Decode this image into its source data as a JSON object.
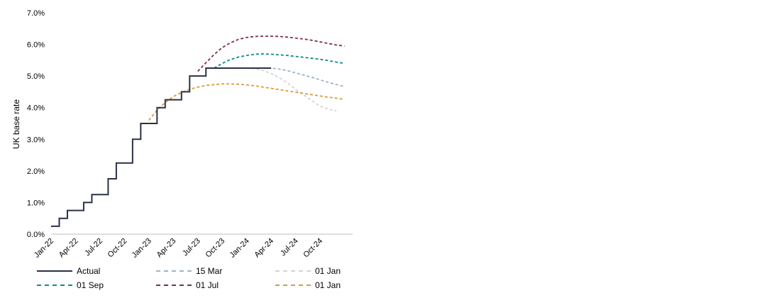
{
  "chart_data": {
    "type": "line",
    "title": "",
    "xlabel": "",
    "ylabel": "UK base rate",
    "ylim": [
      0,
      7
    ],
    "yticks": [
      "0.0%",
      "1.0%",
      "2.0%",
      "3.0%",
      "4.0%",
      "5.0%",
      "6.0%",
      "7.0%"
    ],
    "xlim": [
      "2022-01",
      "2025-02"
    ],
    "xticks": [
      "Jan-22",
      "Apr-22",
      "Jul-22",
      "Oct-22",
      "Jan-23",
      "Apr-23",
      "Jul-23",
      "Oct-23",
      "Jan-24",
      "Apr-24",
      "Jul-24",
      "Oct-24"
    ],
    "grid": false,
    "legend_position": "bottom",
    "series": [
      {
        "name": "Actual",
        "style": "solid",
        "color": "#2b3245",
        "step": true,
        "points": [
          [
            "2022-01",
            0.25
          ],
          [
            "2022-02",
            0.5
          ],
          [
            "2022-03",
            0.75
          ],
          [
            "2022-05",
            1.0
          ],
          [
            "2022-06",
            1.25
          ],
          [
            "2022-08",
            1.75
          ],
          [
            "2022-09",
            2.25
          ],
          [
            "2022-11",
            3.0
          ],
          [
            "2022-12",
            3.5
          ],
          [
            "2023-02",
            4.0
          ],
          [
            "2023-03",
            4.25
          ],
          [
            "2023-05",
            4.5
          ],
          [
            "2023-06",
            5.0
          ],
          [
            "2023-08",
            5.25
          ],
          [
            "2024-04",
            5.25
          ]
        ]
      },
      {
        "name": "15 Mar",
        "style": "dashed",
        "color": "#9fb3c2",
        "points": [
          [
            "2024-03",
            5.25
          ],
          [
            "2024-04",
            5.25
          ],
          [
            "2024-05",
            5.22
          ],
          [
            "2024-06",
            5.17
          ],
          [
            "2024-07",
            5.1
          ],
          [
            "2024-08",
            5.03
          ],
          [
            "2024-09",
            4.96
          ],
          [
            "2024-10",
            4.88
          ],
          [
            "2024-11",
            4.8
          ],
          [
            "2024-12",
            4.73
          ],
          [
            "2025-01",
            4.67
          ]
        ]
      },
      {
        "name": "01 Jan",
        "style": "dashed",
        "color": "#d4d4d4",
        "points": [
          [
            "2024-01",
            5.25
          ],
          [
            "2024-02",
            5.23
          ],
          [
            "2024-03",
            5.18
          ],
          [
            "2024-04",
            5.08
          ],
          [
            "2024-05",
            4.95
          ],
          [
            "2024-06",
            4.78
          ],
          [
            "2024-07",
            4.58
          ],
          [
            "2024-08",
            4.4
          ],
          [
            "2024-09",
            4.22
          ],
          [
            "2024-10",
            4.05
          ],
          [
            "2024-11",
            3.95
          ],
          [
            "2024-12",
            3.9
          ]
        ]
      },
      {
        "name": "01 Sep",
        "style": "dashed",
        "color": "#0e8b88",
        "points": [
          [
            "2023-09",
            5.25
          ],
          [
            "2023-10",
            5.4
          ],
          [
            "2023-11",
            5.52
          ],
          [
            "2023-12",
            5.6
          ],
          [
            "2024-01",
            5.65
          ],
          [
            "2024-02",
            5.69
          ],
          [
            "2024-03",
            5.7
          ],
          [
            "2024-04",
            5.69
          ],
          [
            "2024-05",
            5.67
          ],
          [
            "2024-06",
            5.65
          ],
          [
            "2024-07",
            5.62
          ],
          [
            "2024-08",
            5.59
          ],
          [
            "2024-09",
            5.56
          ],
          [
            "2024-10",
            5.53
          ],
          [
            "2024-11",
            5.49
          ],
          [
            "2024-12",
            5.44
          ],
          [
            "2025-01",
            5.4
          ]
        ]
      },
      {
        "name": "01 Jul",
        "style": "dashed",
        "color": "#7d2f45",
        "points": [
          [
            "2023-07",
            5.15
          ],
          [
            "2023-08",
            5.42
          ],
          [
            "2023-09",
            5.68
          ],
          [
            "2023-10",
            5.9
          ],
          [
            "2023-11",
            6.05
          ],
          [
            "2023-12",
            6.16
          ],
          [
            "2024-01",
            6.22
          ],
          [
            "2024-02",
            6.25
          ],
          [
            "2024-03",
            6.26
          ],
          [
            "2024-04",
            6.26
          ],
          [
            "2024-05",
            6.25
          ],
          [
            "2024-06",
            6.23
          ],
          [
            "2024-07",
            6.2
          ],
          [
            "2024-08",
            6.17
          ],
          [
            "2024-09",
            6.13
          ],
          [
            "2024-10",
            6.08
          ],
          [
            "2024-11",
            6.03
          ],
          [
            "2024-12",
            5.98
          ],
          [
            "2025-01",
            5.95
          ]
        ]
      },
      {
        "name": "01 Jan",
        "style": "dashed",
        "color": "#d89a3e",
        "points": [
          [
            "2023-01",
            3.6
          ],
          [
            "2023-02",
            3.92
          ],
          [
            "2023-03",
            4.16
          ],
          [
            "2023-04",
            4.35
          ],
          [
            "2023-05",
            4.48
          ],
          [
            "2023-06",
            4.58
          ],
          [
            "2023-07",
            4.65
          ],
          [
            "2023-08",
            4.7
          ],
          [
            "2023-09",
            4.73
          ],
          [
            "2023-10",
            4.75
          ],
          [
            "2023-11",
            4.75
          ],
          [
            "2023-12",
            4.74
          ],
          [
            "2024-01",
            4.72
          ],
          [
            "2024-02",
            4.69
          ],
          [
            "2024-03",
            4.65
          ],
          [
            "2024-04",
            4.61
          ],
          [
            "2024-05",
            4.57
          ],
          [
            "2024-06",
            4.53
          ],
          [
            "2024-07",
            4.49
          ],
          [
            "2024-08",
            4.45
          ],
          [
            "2024-09",
            4.41
          ],
          [
            "2024-10",
            4.37
          ],
          [
            "2024-11",
            4.33
          ],
          [
            "2024-12",
            4.3
          ],
          [
            "2025-01",
            4.26
          ]
        ]
      }
    ]
  }
}
